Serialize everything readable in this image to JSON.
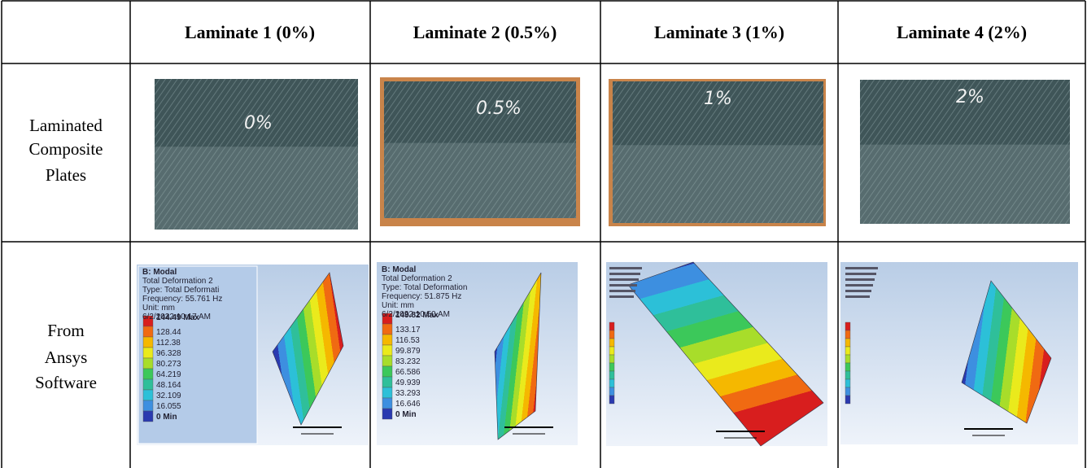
{
  "table": {
    "columns": [
      "Laminate 1 (0%)",
      "Laminate 2 (0.5%)",
      "Laminate 3 (1%)",
      "Laminate 4 (2%)"
    ],
    "rows": [
      {
        "label": [
          "Laminated",
          "Composite",
          "Plates"
        ],
        "plates": [
          "0%",
          "0.5%",
          "1%",
          "2%"
        ]
      },
      {
        "label": [
          "From",
          "Ansys",
          "Software"
        ],
        "panels": [
          {
            "info": [
              "B: Modal",
              "Total Deformation 2",
              "Type: Total Deformati",
              "Frequency: 55.761 Hz",
              "Unit: mm",
              "6/2/2022 10:17 AM"
            ],
            "legend": [
              "144.49 Max",
              "128.44",
              "112.38",
              "96.328",
              "80.273",
              "64.219",
              "48.164",
              "32.109",
              "16.055",
              "0 Min"
            ]
          },
          {
            "info": [
              "B: Modal",
              "Total Deformation 2",
              "Type: Total Deformation",
              "Frequency: 51.875 Hz",
              "Unit: mm",
              "6/2/2022 10:50 AM"
            ],
            "legend": [
              "149.82 Max",
              "133.17",
              "116.53",
              "99.879",
              "83.232",
              "66.586",
              "49.939",
              "33.293",
              "16.646",
              "0 Min"
            ]
          }
        ]
      }
    ]
  }
}
